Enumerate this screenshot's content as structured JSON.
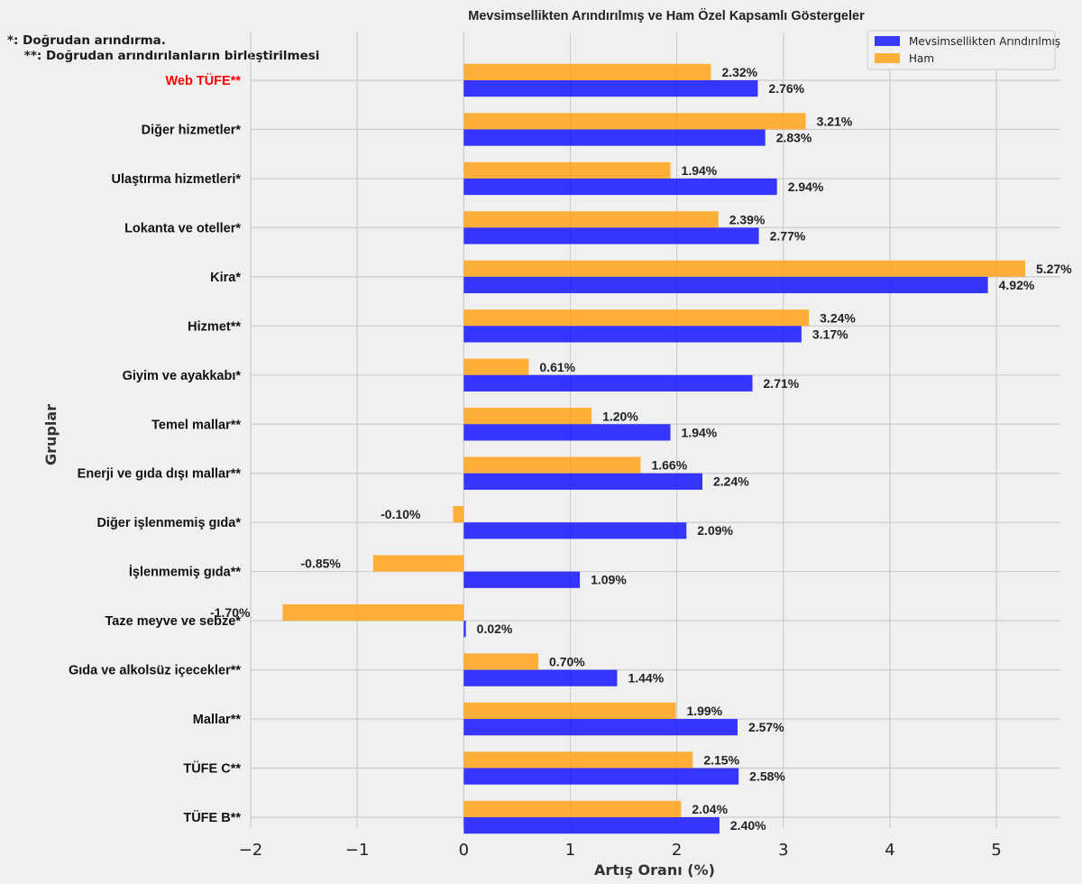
{
  "chart_data": {
    "type": "bar",
    "orientation": "horizontal",
    "title": "Mevsimsellikten Arındırılmış ve Ham Özel Kapsamlı Göstergeler",
    "xlabel": "Artış Oranı (%)",
    "ylabel": "Gruplar",
    "xlim": [
      -2,
      5.6
    ],
    "xticks": [
      -2,
      -1,
      0,
      1,
      2,
      3,
      4,
      5
    ],
    "xtick_labels": [
      "−2",
      "−1",
      "0",
      "1",
      "2",
      "3",
      "4",
      "5"
    ],
    "grid": true,
    "legend_position": "top-right",
    "categories": [
      "Web TÜFE**",
      "Diğer hizmetler*",
      "Ulaştırma hizmetleri*",
      "Lokanta ve oteller*",
      "Kira*",
      "Hizmet**",
      "Giyim ve ayakkabı*",
      "Temel mallar**",
      "Enerji ve gıda dışı mallar**",
      "Diğer işlenmemiş gıda*",
      "İşlenmemiş gıda**",
      "Taze meyve ve sebze*",
      "Gıda ve alkolsüz içecekler**",
      "Mallar**",
      "TÜFE C**",
      "TÜFE B**"
    ],
    "highlight_category": "Web TÜFE**",
    "series": [
      {
        "name": "Mevsimsellikten Arındırılmış",
        "color": "#1a1aff",
        "values": [
          2.76,
          2.83,
          2.94,
          2.77,
          4.92,
          3.17,
          2.71,
          1.94,
          2.24,
          2.09,
          1.09,
          0.02,
          1.44,
          2.57,
          2.58,
          2.4
        ],
        "labels": [
          "2.76%",
          "2.83%",
          "2.94%",
          "2.77%",
          "4.92%",
          "3.17%",
          "2.71%",
          "1.94%",
          "2.24%",
          "2.09%",
          "1.09%",
          "0.02%",
          "1.44%",
          "2.57%",
          "2.58%",
          "2.40%"
        ]
      },
      {
        "name": "Ham",
        "color": "#ffa31a",
        "values": [
          2.32,
          3.21,
          1.94,
          2.39,
          5.27,
          3.24,
          0.61,
          1.2,
          1.66,
          -0.1,
          -0.85,
          -1.7,
          0.7,
          1.99,
          2.15,
          2.04
        ],
        "labels": [
          "2.32%",
          "3.21%",
          "1.94%",
          "2.39%",
          "5.27%",
          "3.24%",
          "0.61%",
          "1.20%",
          "1.66%",
          "-0.10%",
          "-0.85%",
          "-1.70%",
          "0.70%",
          "1.99%",
          "2.15%",
          "2.04%"
        ]
      }
    ],
    "colors": {
      "highlight_label": "#ff0000",
      "background": "#f0f0f0",
      "grid": "#cbcbcb"
    }
  },
  "notes": {
    "line1": "*: Doğrudan arındırma.",
    "line2": "    **: Doğrudan arındırılanların birleştirilmesi"
  }
}
